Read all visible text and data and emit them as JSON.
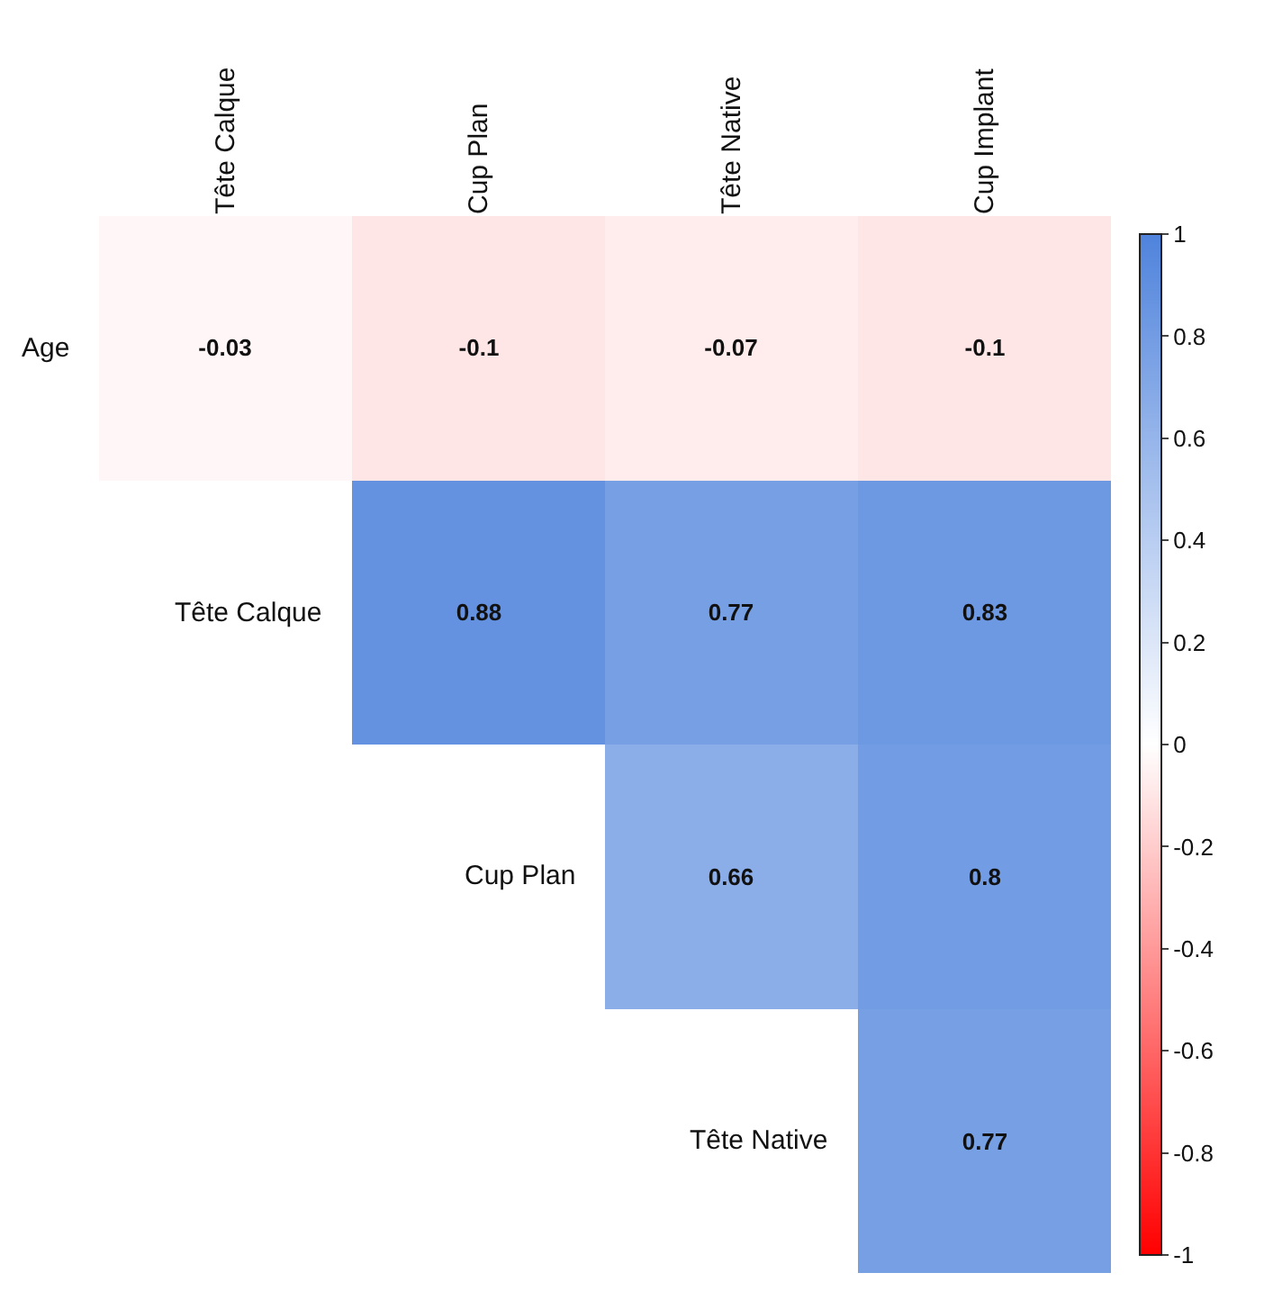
{
  "chart_data": {
    "type": "heatmap",
    "categories": [
      "Tête Calque",
      "Cup Plan",
      "Tête Native",
      "Cup Implant"
    ],
    "y_categories": [
      "Age",
      "Tête Calque",
      "Cup Plan",
      "Tête Native"
    ],
    "cells": [
      [
        -0.03,
        -0.1,
        -0.07,
        -0.1
      ],
      [
        null,
        0.88,
        0.77,
        0.83
      ],
      [
        null,
        null,
        0.66,
        0.8
      ],
      [
        null,
        null,
        null,
        0.77
      ]
    ],
    "data_labels": true,
    "clim": [
      -1,
      1
    ],
    "cticks": [
      -1,
      -0.8,
      -0.6,
      -0.4,
      -0.2,
      0,
      0.2,
      0.4,
      0.6,
      0.8,
      1
    ]
  }
}
